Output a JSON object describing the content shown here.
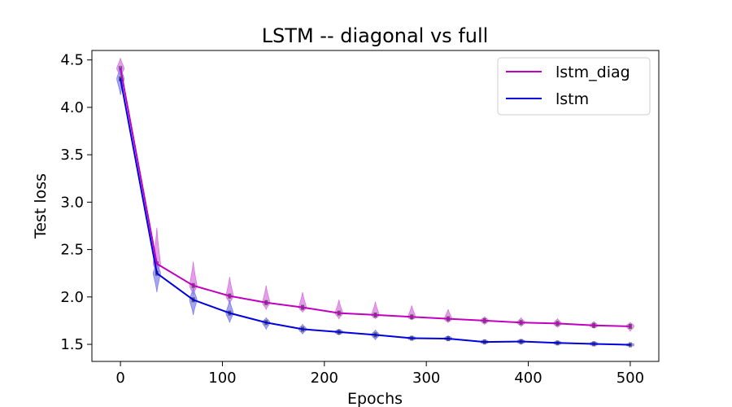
{
  "chart_data": {
    "type": "line",
    "title": "LSTM -- diagonal vs full",
    "xlabel": "Epochs",
    "ylabel": "Test loss",
    "xlim": [
      -28,
      528
    ],
    "ylim": [
      1.32,
      4.6
    ],
    "xticks": [
      0,
      100,
      200,
      300,
      400,
      500
    ],
    "yticks": [
      1.5,
      2.0,
      2.5,
      3.0,
      3.5,
      4.0,
      4.5
    ],
    "xtick_labels": [
      "0",
      "100",
      "200",
      "300",
      "400",
      "500"
    ],
    "ytick_labels": [
      "1.5",
      "2.0",
      "2.5",
      "3.0",
      "3.5",
      "4.0",
      "4.5"
    ],
    "grid": false,
    "legend_position": "top-right",
    "x": [
      0,
      35.7,
      71.4,
      107.1,
      142.9,
      178.6,
      214.3,
      250,
      285.7,
      321.4,
      357.1,
      392.9,
      428.6,
      464.3,
      500
    ],
    "series": [
      {
        "name": "lstm_diag",
        "color": "#bf00bf",
        "values": [
          4.41,
          2.35,
          2.12,
          2.01,
          1.94,
          1.89,
          1.83,
          1.81,
          1.79,
          1.77,
          1.75,
          1.73,
          1.72,
          1.7,
          1.69
        ],
        "spread_low": [
          4.33,
          2.25,
          2.02,
          1.93,
          1.87,
          1.84,
          1.77,
          1.77,
          1.76,
          1.73,
          1.71,
          1.69,
          1.68,
          1.67,
          1.64
        ],
        "spread_high": [
          4.52,
          2.73,
          2.37,
          2.21,
          2.12,
          2.05,
          1.97,
          1.95,
          1.91,
          1.87,
          1.79,
          1.78,
          1.77,
          1.74,
          1.73
        ]
      },
      {
        "name": "lstm",
        "color": "#0000dd",
        "values": [
          4.3,
          2.25,
          1.97,
          1.83,
          1.73,
          1.66,
          1.63,
          1.6,
          1.565,
          1.56,
          1.525,
          1.53,
          1.515,
          1.505,
          1.495
        ],
        "spread_low": [
          4.13,
          2.05,
          1.81,
          1.73,
          1.66,
          1.61,
          1.6,
          1.55,
          1.55,
          1.54,
          1.51,
          1.5,
          1.5,
          1.49,
          1.49
        ],
        "spread_high": [
          4.44,
          2.38,
          2.1,
          1.97,
          1.78,
          1.71,
          1.66,
          1.65,
          1.58,
          1.59,
          1.55,
          1.55,
          1.53,
          1.53,
          1.5
        ]
      }
    ]
  }
}
